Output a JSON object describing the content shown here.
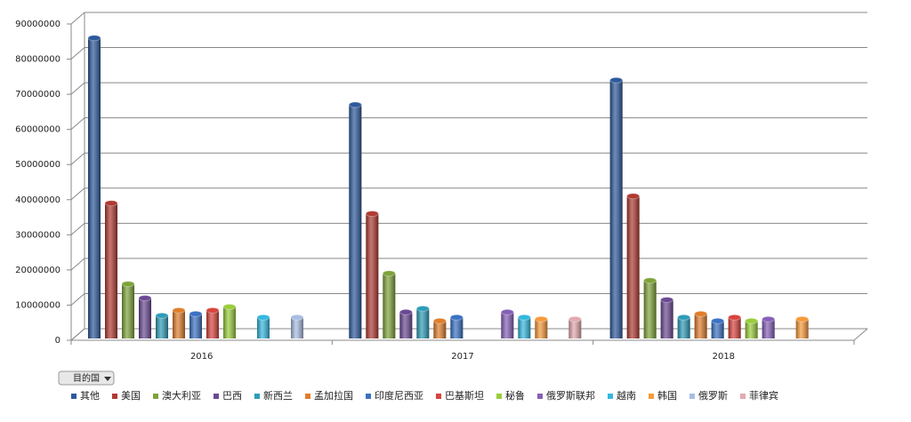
{
  "field_button": "目的国",
  "chart_data": {
    "type": "bar3d",
    "categories": [
      "2016",
      "2017",
      "2018"
    ],
    "ylim": [
      0,
      90000000
    ],
    "yticks": [
      0,
      10000000,
      20000000,
      30000000,
      40000000,
      50000000,
      60000000,
      70000000,
      80000000,
      90000000
    ],
    "grid": true,
    "legend": "bottom",
    "series": [
      {
        "name": "其他",
        "color": "#2e5a9c",
        "values": [
          85000000,
          66000000,
          73000000
        ]
      },
      {
        "name": "美国",
        "color": "#b03a32",
        "values": [
          38000000,
          35000000,
          40000000
        ]
      },
      {
        "name": "澳大利亚",
        "color": "#7fa33a",
        "values": [
          15000000,
          18000000,
          16000000
        ]
      },
      {
        "name": "巴西",
        "color": "#6b4a94",
        "values": [
          11000000,
          7000000,
          10500000
        ]
      },
      {
        "name": "新西兰",
        "color": "#2e9cb8",
        "values": [
          6000000,
          8000000,
          5500000
        ]
      },
      {
        "name": "孟加拉国",
        "color": "#e07e2c",
        "values": [
          7500000,
          4500000,
          6500000
        ]
      },
      {
        "name": "印度尼西亚",
        "color": "#3a72c4",
        "values": [
          6500000,
          5500000,
          4500000
        ]
      },
      {
        "name": "巴基斯坦",
        "color": "#d9433e",
        "values": [
          7500000,
          null,
          5500000
        ]
      },
      {
        "name": "秘鲁",
        "color": "#9acd3a",
        "values": [
          8500000,
          null,
          4500000
        ]
      },
      {
        "name": "俄罗斯联邦",
        "color": "#8560b8",
        "values": [
          null,
          7000000,
          5000000
        ]
      },
      {
        "name": "越南",
        "color": "#34b8e0",
        "values": [
          5500000,
          5500000,
          null
        ]
      },
      {
        "name": "韩国",
        "color": "#f79a3a",
        "values": [
          null,
          5000000,
          5000000
        ]
      },
      {
        "name": "俄罗斯",
        "color": "#a9bde3",
        "values": [
          5500000,
          null,
          null
        ]
      },
      {
        "name": "菲律宾",
        "color": "#e3a9b0",
        "values": [
          null,
          5000000,
          null
        ]
      }
    ]
  }
}
